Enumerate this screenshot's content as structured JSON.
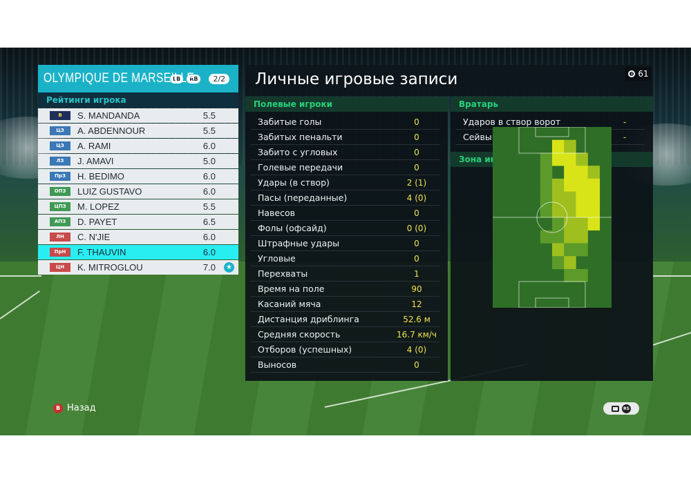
{
  "team": {
    "name": "OLYMPIQUE DE MARSEILLE",
    "lb_button": "LB",
    "rb_button": "RB",
    "page": "2/2",
    "ratings_title": "Рейтинги игрока",
    "players": [
      {
        "pos": "В",
        "name": "S. MANDANDA",
        "rating": "5.5",
        "group": "gk"
      },
      {
        "pos": "ЦЗ",
        "name": "A. ABDENNOUR",
        "rating": "5.5",
        "group": "df"
      },
      {
        "pos": "ЦЗ",
        "name": "A. RAMI",
        "rating": "6.0",
        "group": "df"
      },
      {
        "pos": "ЛЗ",
        "name": "J. AMAVI",
        "rating": "5.0",
        "group": "df"
      },
      {
        "pos": "ПрЗ",
        "name": "H. BEDIMO",
        "rating": "6.0",
        "group": "df"
      },
      {
        "pos": "ОПЗ",
        "name": "LUIZ GUSTAVO",
        "rating": "6.0",
        "group": "mf"
      },
      {
        "pos": "ЦПЗ",
        "name": "M. LOPEZ",
        "rating": "5.5",
        "group": "mf"
      },
      {
        "pos": "АПЗ",
        "name": "D. PAYET",
        "rating": "6.5",
        "group": "mf"
      },
      {
        "pos": "ЛН",
        "name": "C. N'JIE",
        "rating": "6.0",
        "group": "fw"
      },
      {
        "pos": "ПрН",
        "name": "F. THAUVIN",
        "rating": "6.0",
        "group": "fw",
        "selected": true
      },
      {
        "pos": "ЦН",
        "name": "K. MITROGLOU",
        "rating": "7.0",
        "group": "fw",
        "star": true
      }
    ]
  },
  "records": {
    "title": "Личные игровые записи",
    "timer": "61",
    "field_title": "Полевые игроки",
    "field_stats": [
      {
        "label": "Забитые голы",
        "value": "0"
      },
      {
        "label": "Забитых пенальти",
        "value": "0"
      },
      {
        "label": "Забито с угловых",
        "value": "0"
      },
      {
        "label": "Голевые передачи",
        "value": "0"
      },
      {
        "label": "Удары (в створ)",
        "value": "2 (1)"
      },
      {
        "label": "Пасы (переданные)",
        "value": "4 (0)"
      },
      {
        "label": "Навесов",
        "value": "0"
      },
      {
        "label": "Фолы (офсайд)",
        "value": "0 (0)"
      },
      {
        "label": "Штрафные удары",
        "value": "0"
      },
      {
        "label": "Угловые",
        "value": "0"
      },
      {
        "label": "Перехваты",
        "value": "1"
      },
      {
        "label": "Время на поле",
        "value": "90"
      },
      {
        "label": "Касаний мяча",
        "value": "12"
      },
      {
        "label": "Дистанция дриблинга",
        "value": "52.6 м"
      },
      {
        "label": "Средняя скорость",
        "value": "16.7 км/ч"
      },
      {
        "label": "Отборов (успешных)",
        "value": "4 (0)"
      },
      {
        "label": "Выносов",
        "value": "0"
      }
    ],
    "gk_title": "Вратарь",
    "gk_stats": [
      {
        "label": "Ударов в створ ворот",
        "value": "-"
      },
      {
        "label": "Сейвы",
        "value": "-"
      }
    ],
    "zone_title": "Зона игры"
  },
  "footer": {
    "back_label": "Назад",
    "b_button": "B",
    "rs_button": "RS"
  },
  "colors": {
    "accent": "#1bb2c8",
    "selected_row": "#28eef2",
    "stat_value": "#f3e34d",
    "section_title": "#28d07a"
  }
}
